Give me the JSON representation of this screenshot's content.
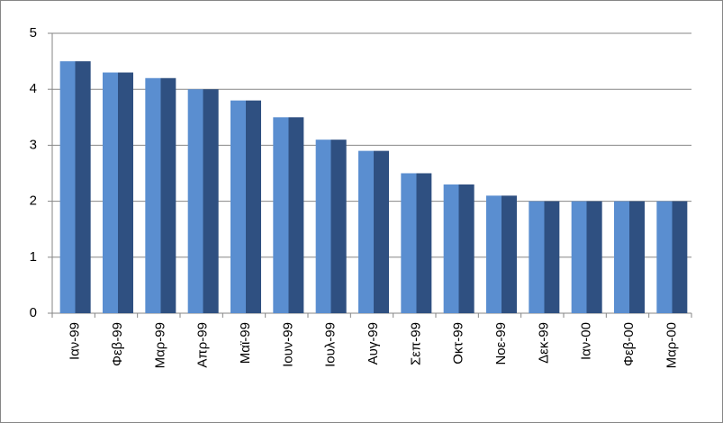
{
  "chart_data": {
    "type": "bar",
    "categories": [
      "Ιαν-99",
      "Φεβ-99",
      "Μαρ-99",
      "Απρ-99",
      "Μαϊ-99",
      "Ιουν-99",
      "Ιουλ-99",
      "Αυγ-99",
      "Σεπ-99",
      "Οκτ-99",
      "Νοε-99",
      "Δεκ-99",
      "Ιαν-00",
      "Φεβ-00",
      "Μαρ-00"
    ],
    "values": [
      4.5,
      4.3,
      4.2,
      4.0,
      3.8,
      3.5,
      3.1,
      2.9,
      2.5,
      2.3,
      2.1,
      2.0,
      2.0,
      2.0,
      2.0
    ],
    "color": "#4f81bd",
    "ylim": [
      0,
      5
    ],
    "yticks": [
      0,
      1,
      2,
      3,
      4,
      5
    ],
    "grid": true
  }
}
